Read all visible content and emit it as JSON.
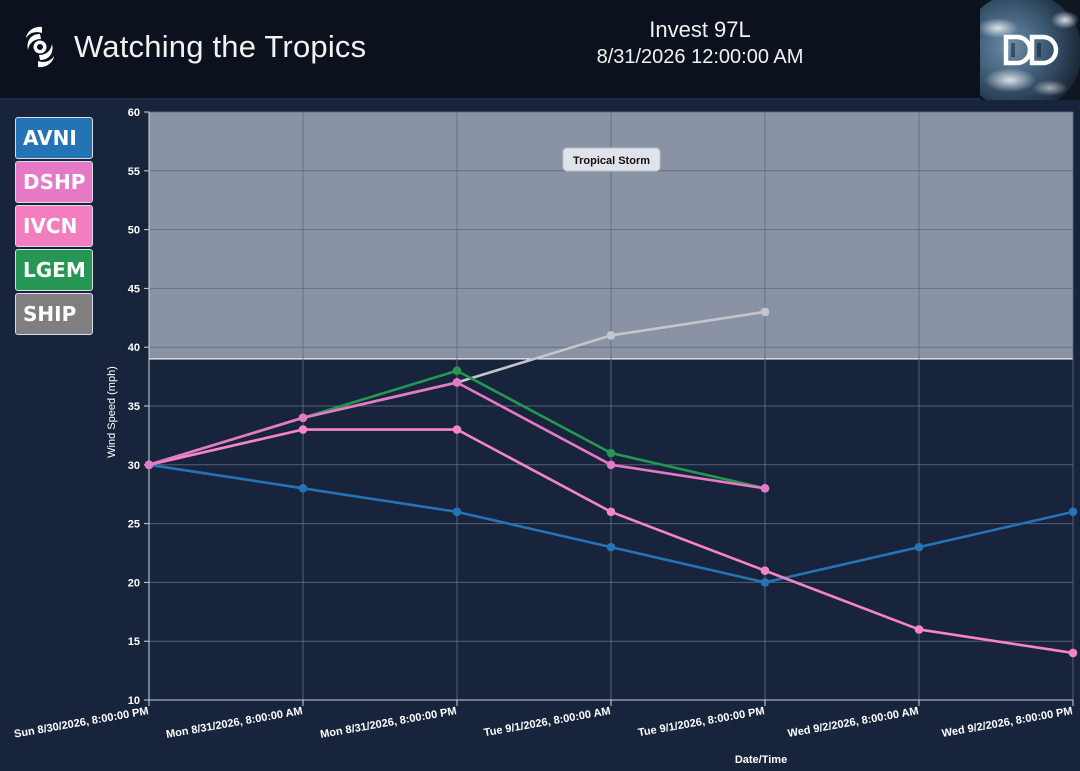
{
  "header": {
    "site_title": "Watching the Tropics",
    "storm_name": "Invest 97L",
    "storm_datetime": "8/31/2026 12:00:00 AM",
    "logo_icon": "dd-globe-logo",
    "brand_icon": "hurricane-icon"
  },
  "legend": {
    "items": [
      {
        "label": "AVNI",
        "color": "#2474b5"
      },
      {
        "label": "DSHP",
        "color": "#e679c5"
      },
      {
        "label": "IVCN",
        "color": "#f27dbf"
      },
      {
        "label": "LGEM",
        "color": "#259653"
      },
      {
        "label": "SHIP",
        "color": "#7f7f7f"
      }
    ]
  },
  "colors": {
    "background": "#18243b",
    "header_background": "#0b121d",
    "band": "#8a93a5"
  },
  "chart_data": {
    "type": "line",
    "xlabel": "Date/Time",
    "ylabel": "Wind Speed (mph)",
    "ylim": [
      10,
      60
    ],
    "yticks": [
      10,
      15,
      20,
      25,
      30,
      35,
      40,
      45,
      50,
      55,
      60
    ],
    "grid": true,
    "categories": [
      "Sun 8/30/2026, 8:00:00 PM",
      "Mon 8/31/2026, 8:00:00 AM",
      "Mon 8/31/2026, 8:00:00 PM",
      "Tue 9/1/2026, 8:00:00 AM",
      "Tue 9/1/2026, 8:00:00 PM",
      "Wed 9/2/2026, 8:00:00 AM",
      "Wed 9/2/2026, 8:00:00 PM"
    ],
    "bands": [
      {
        "label": "Tropical Storm",
        "from": 39,
        "to": 60,
        "color": "#8a93a5"
      }
    ],
    "series": [
      {
        "name": "SHIP",
        "color": "#c4c6cc",
        "values": [
          30,
          34,
          37,
          41,
          43,
          null,
          null
        ]
      },
      {
        "name": "LGEM",
        "color": "#259653",
        "values": [
          30,
          34,
          38,
          31,
          28,
          null,
          null
        ]
      },
      {
        "name": "AVNI",
        "color": "#2474b5",
        "values": [
          30,
          28,
          26,
          23,
          20,
          23,
          26
        ]
      },
      {
        "name": "DSHP",
        "color": "#f585c8",
        "values": [
          30,
          33,
          33,
          26,
          21,
          16,
          14
        ]
      },
      {
        "name": "IVCN",
        "color": "#e679c5",
        "values": [
          30,
          34,
          37,
          30,
          28,
          null,
          null
        ]
      }
    ]
  }
}
